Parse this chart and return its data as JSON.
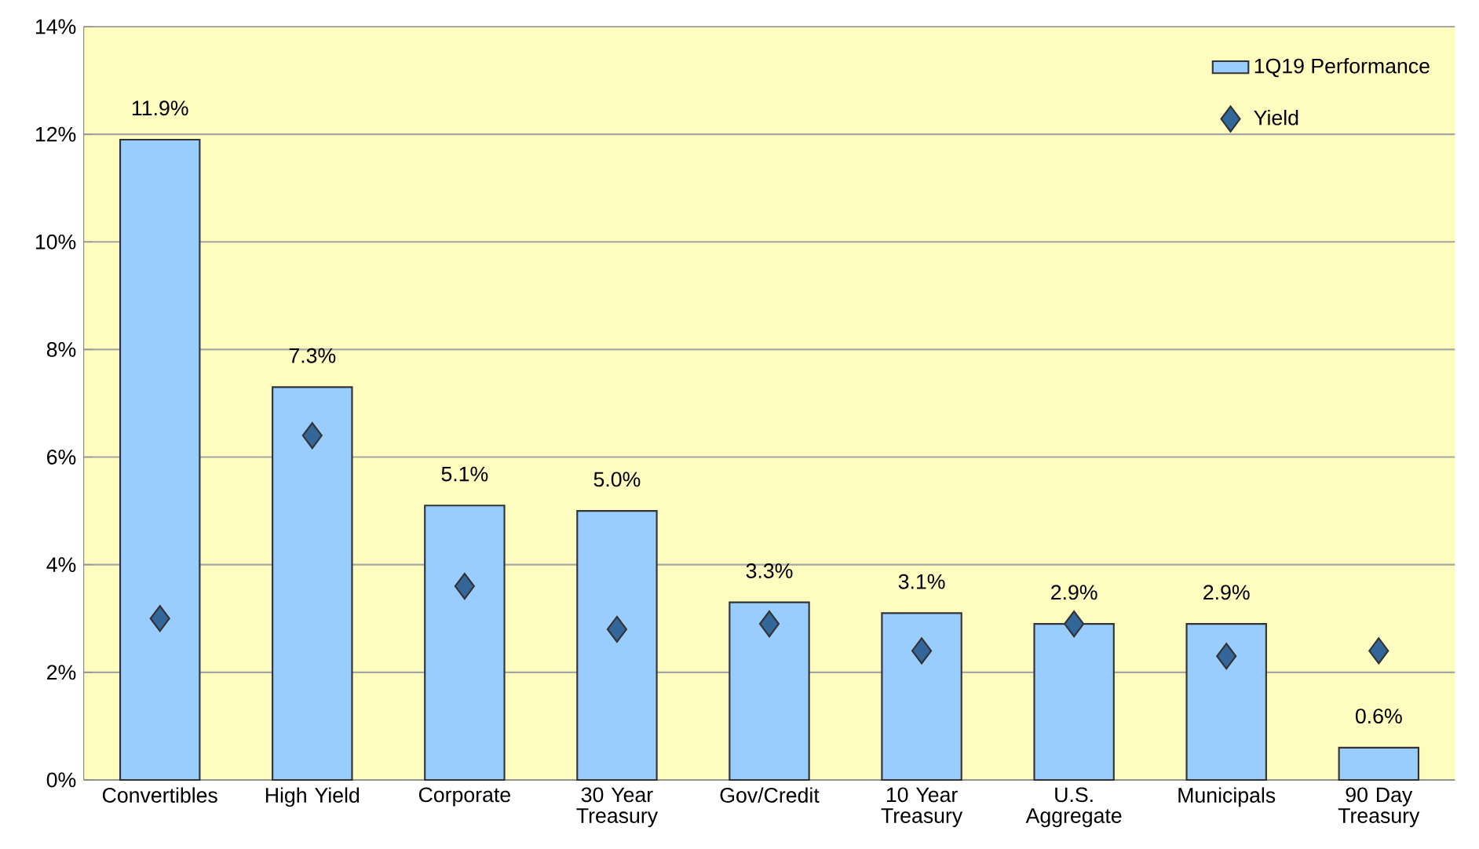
{
  "chart_data": {
    "type": "bar",
    "categories": [
      "Convertibles",
      "High Yield",
      "Corporate",
      "30 Year Treasury",
      "Gov/Credit",
      "10 Year Treasury",
      "U.S. Aggregate",
      "Municipals",
      "90 Day Treasury"
    ],
    "series": [
      {
        "name": "1Q19 Performance",
        "color": "#99ccff",
        "values": [
          11.9,
          7.3,
          5.1,
          5.0,
          3.3,
          3.1,
          2.9,
          2.9,
          0.6
        ],
        "value_labels": [
          "11.9%",
          "7.3%",
          "5.1%",
          "5.0%",
          "3.3%",
          "3.1%",
          "2.9%",
          "2.9%",
          "0.6%"
        ]
      },
      {
        "name": "Yield",
        "type": "scatter",
        "color": "#336699",
        "marker": "diamond",
        "values": [
          3.0,
          6.4,
          3.6,
          2.8,
          2.9,
          2.4,
          2.9,
          2.3,
          2.4
        ]
      }
    ],
    "ylim": [
      0,
      14
    ],
    "yticks": [
      {
        "value": 0,
        "label": "0%"
      },
      {
        "value": 2,
        "label": "2%"
      },
      {
        "value": 4,
        "label": "4%"
      },
      {
        "value": 6,
        "label": "6%"
      },
      {
        "value": 8,
        "label": "8%"
      },
      {
        "value": 10,
        "label": "10%"
      },
      {
        "value": 12,
        "label": "12%"
      },
      {
        "value": 14,
        "label": "14%"
      }
    ],
    "grid": "y",
    "legend": "top right"
  }
}
